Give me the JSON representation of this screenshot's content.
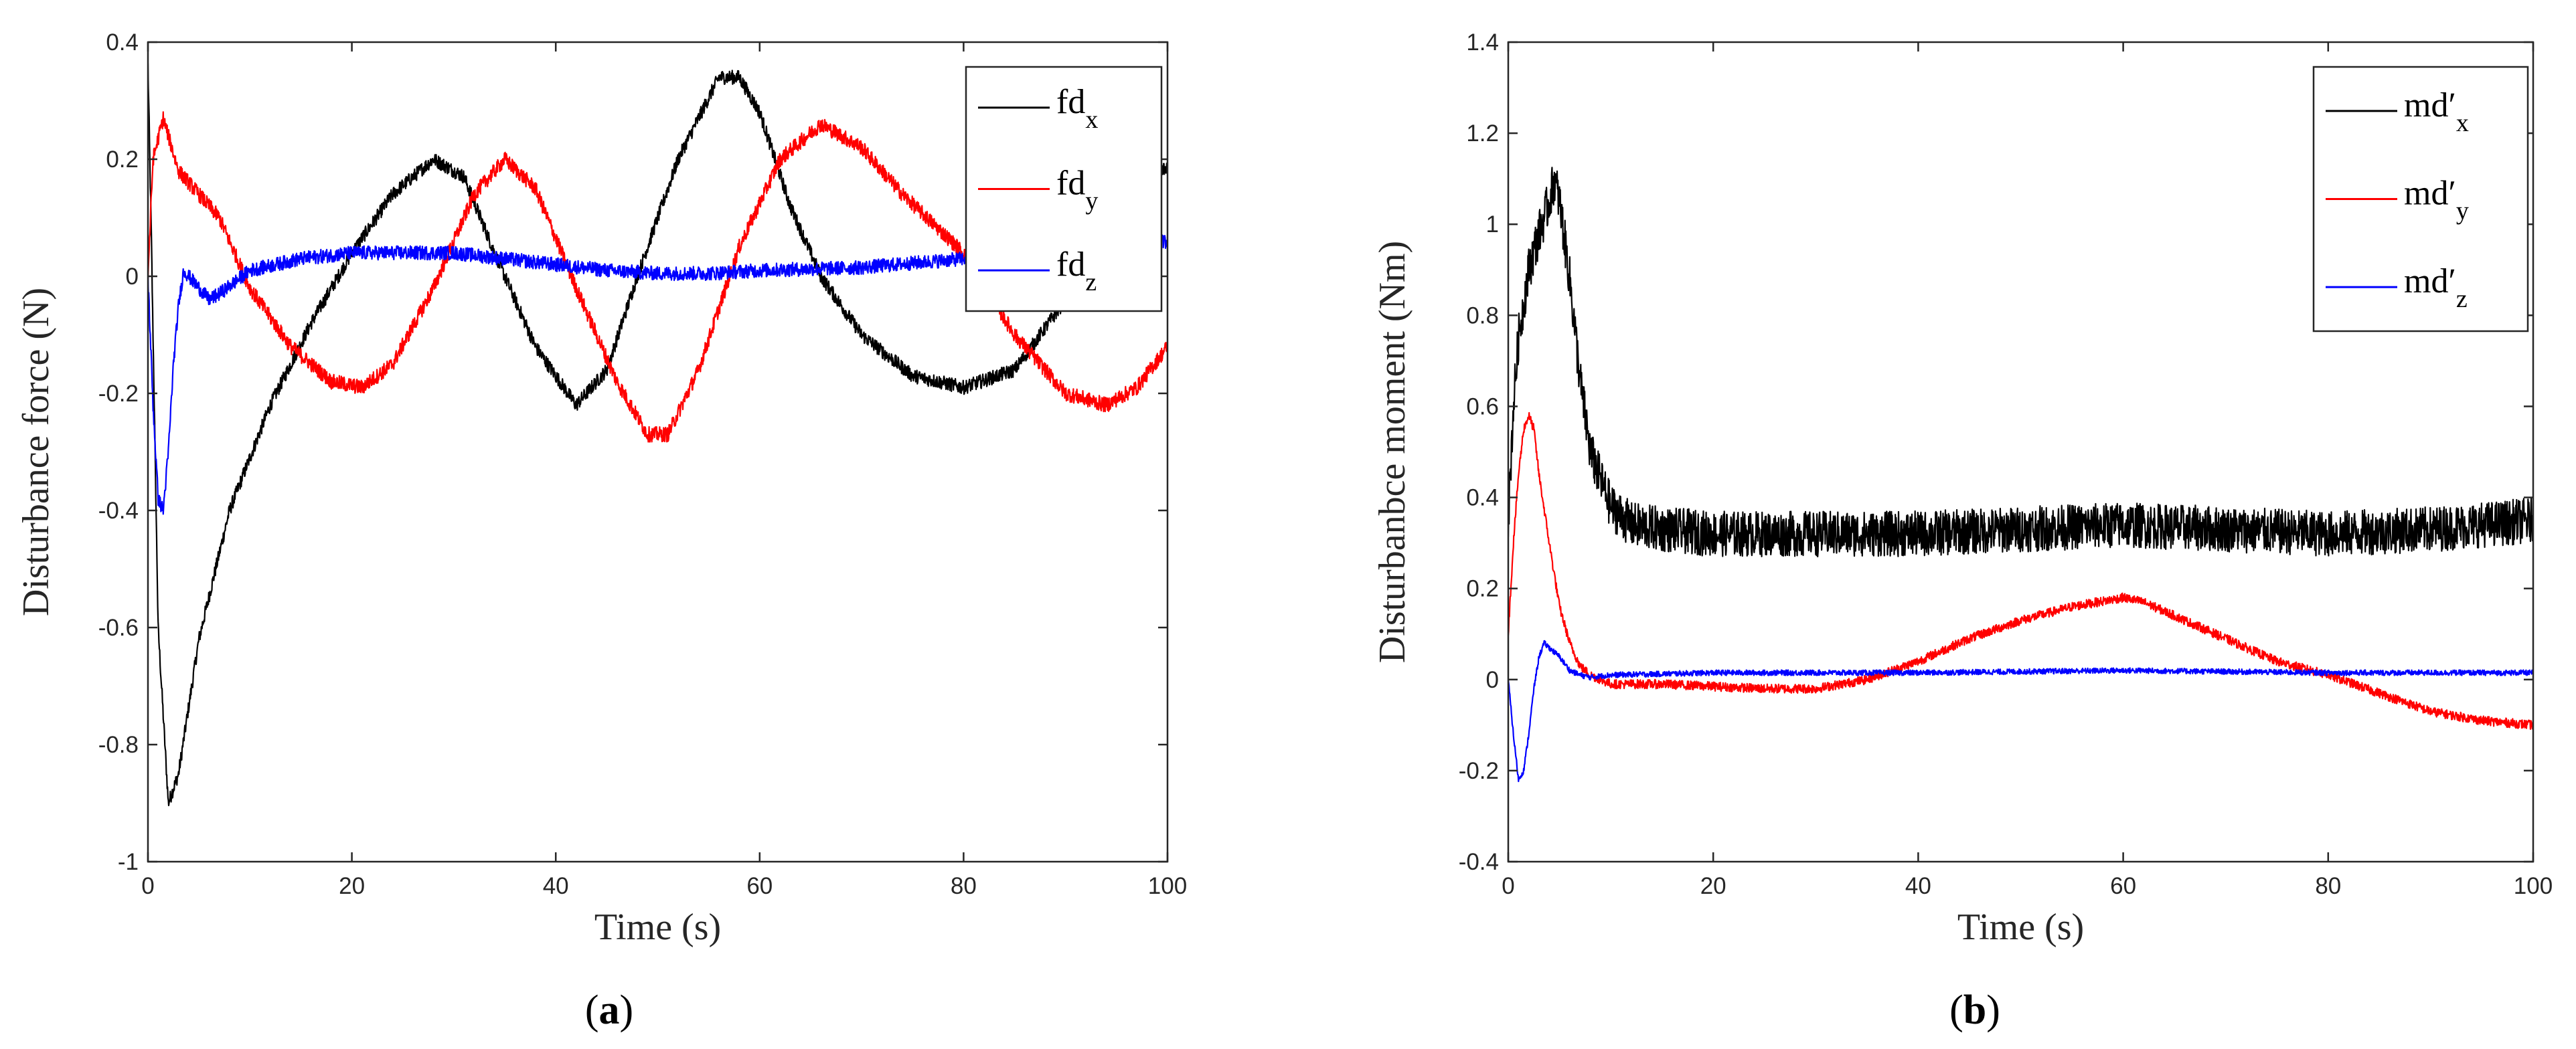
{
  "chart_data": [
    {
      "type": "line",
      "panel": "a",
      "caption": "a",
      "xlabel": "Time (s)",
      "ylabel": "Disturbance force (N)",
      "xlim": [
        0,
        100
      ],
      "ylim": [
        -1,
        0.4
      ],
      "xticks": [
        0,
        20,
        40,
        60,
        80,
        100
      ],
      "xtick_labels": [
        "0",
        "20",
        "40",
        "60",
        "80",
        "100"
      ],
      "yticks": [
        0.4,
        0.2,
        0,
        -0.2,
        -0.4,
        -0.6,
        -0.8,
        -1
      ],
      "ytick_labels": [
        "0.4",
        "0.2",
        "0",
        "-0.2",
        "-0.4",
        "-0.6",
        "-0.8",
        "-1"
      ],
      "grid": false,
      "legend_position": "top-right",
      "series": [
        {
          "name": "fd",
          "subscript": "x",
          "color": "#000000",
          "noise": 0.012,
          "x": [
            0,
            0.3,
            1,
            2,
            3,
            5,
            8,
            12,
            16,
            20,
            24,
            28,
            31,
            34,
            38,
            42,
            45,
            48,
            52,
            56,
            58,
            60,
            63,
            66,
            70,
            75,
            80,
            85,
            90,
            95,
            100
          ],
          "y": [
            0.36,
            0.1,
            -0.6,
            -0.9,
            -0.85,
            -0.62,
            -0.4,
            -0.22,
            -0.08,
            0.04,
            0.14,
            0.2,
            0.17,
            0.04,
            -0.12,
            -0.22,
            -0.16,
            0,
            0.2,
            0.34,
            0.34,
            0.28,
            0.12,
            0,
            -0.1,
            -0.17,
            -0.19,
            -0.16,
            -0.04,
            0.08,
            0.19
          ]
        },
        {
          "name": "fd",
          "subscript": "y",
          "color": "#ff0000",
          "noise": 0.013,
          "x": [
            0,
            0.5,
            1.5,
            3,
            5,
            7,
            10,
            14,
            18,
            21,
            24,
            28,
            32,
            35,
            38,
            42,
            46,
            49,
            51,
            54,
            58,
            62,
            66,
            70,
            74,
            80,
            85,
            90,
            94,
            97,
            100
          ],
          "y": [
            0,
            0.2,
            0.27,
            0.18,
            0.14,
            0.1,
            -0.02,
            -0.12,
            -0.18,
            -0.19,
            -0.15,
            -0.02,
            0.14,
            0.2,
            0.15,
            -0.02,
            -0.18,
            -0.27,
            -0.27,
            -0.16,
            0.05,
            0.2,
            0.26,
            0.22,
            0.14,
            0.04,
            -0.1,
            -0.2,
            -0.22,
            -0.19,
            -0.12
          ]
        },
        {
          "name": "fd",
          "subscript": "z",
          "color": "#0000ff",
          "noise": 0.012,
          "x": [
            0,
            0.5,
            1,
            1.5,
            2,
            2.5,
            3,
            3.5,
            4,
            5,
            6,
            7,
            10,
            15,
            20,
            25,
            30,
            35,
            40,
            45,
            50,
            55,
            60,
            70,
            80,
            90,
            100
          ],
          "y": [
            0,
            -0.22,
            -0.38,
            -0.4,
            -0.3,
            -0.15,
            -0.05,
            0.01,
            0,
            -0.02,
            -0.04,
            -0.03,
            0.01,
            0.03,
            0.04,
            0.04,
            0.04,
            0.03,
            0.02,
            0.01,
            0.005,
            0.005,
            0.01,
            0.015,
            0.03,
            0.05,
            0.06
          ]
        }
      ]
    },
    {
      "type": "line",
      "panel": "b",
      "caption": "b",
      "xlabel": "Time (s)",
      "ylabel": "Disturbanbce moment (Nm)",
      "xlim": [
        0,
        100
      ],
      "ylim": [
        -0.4,
        1.4
      ],
      "xticks": [
        0,
        20,
        40,
        60,
        80,
        100
      ],
      "xtick_labels": [
        "0",
        "20",
        "40",
        "60",
        "80",
        "100"
      ],
      "yticks": [
        1.4,
        1.2,
        1,
        0.8,
        0.6,
        0.4,
        0.2,
        0,
        -0.2,
        -0.4
      ],
      "ytick_labels": [
        "1.4",
        "1.2",
        "1",
        "0.8",
        "0.6",
        "0.4",
        "0.2",
        "0",
        "-0.2",
        "-0.4"
      ],
      "grid": false,
      "legend_position": "top-right",
      "series": [
        {
          "name": "md′",
          "subscript": "x",
          "color": "#000000",
          "noise": 0.05,
          "x": [
            0,
            0.5,
            1,
            2,
            3,
            4,
            4.5,
            5,
            6,
            7,
            8,
            10,
            12,
            15,
            20,
            30,
            40,
            50,
            60,
            70,
            80,
            90,
            100
          ],
          "y": [
            0.35,
            0.6,
            0.75,
            0.9,
            0.98,
            1.05,
            1.1,
            1.05,
            0.88,
            0.66,
            0.5,
            0.38,
            0.34,
            0.33,
            0.32,
            0.32,
            0.32,
            0.33,
            0.34,
            0.33,
            0.32,
            0.33,
            0.35
          ]
        },
        {
          "name": "md′",
          "subscript": "y",
          "color": "#ff0000",
          "noise": 0.01,
          "x": [
            0,
            0.5,
            1,
            1.5,
            2,
            2.5,
            3,
            4,
            5,
            6,
            7,
            8,
            10,
            15,
            20,
            25,
            30,
            35,
            40,
            45,
            50,
            55,
            60,
            62,
            65,
            70,
            75,
            80,
            85,
            90,
            95,
            100
          ],
          "y": [
            0.1,
            0.3,
            0.45,
            0.55,
            0.58,
            0.55,
            0.45,
            0.3,
            0.16,
            0.08,
            0.03,
            0.01,
            -0.01,
            -0.01,
            -0.015,
            -0.02,
            -0.02,
            0,
            0.04,
            0.09,
            0.13,
            0.16,
            0.18,
            0.17,
            0.14,
            0.09,
            0.04,
            0.01,
            -0.03,
            -0.07,
            -0.09,
            -0.1
          ]
        },
        {
          "name": "md′",
          "subscript": "z",
          "color": "#0000ff",
          "noise": 0.006,
          "x": [
            0,
            0.5,
            1,
            1.5,
            2,
            2.5,
            3,
            3.5,
            4,
            5,
            6,
            7,
            8,
            10,
            20,
            40,
            60,
            80,
            100
          ],
          "y": [
            0,
            -0.12,
            -0.22,
            -0.2,
            -0.12,
            -0.02,
            0.05,
            0.08,
            0.07,
            0.05,
            0.02,
            0.01,
            0.005,
            0.01,
            0.015,
            0.015,
            0.02,
            0.015,
            0.015
          ]
        }
      ]
    }
  ]
}
